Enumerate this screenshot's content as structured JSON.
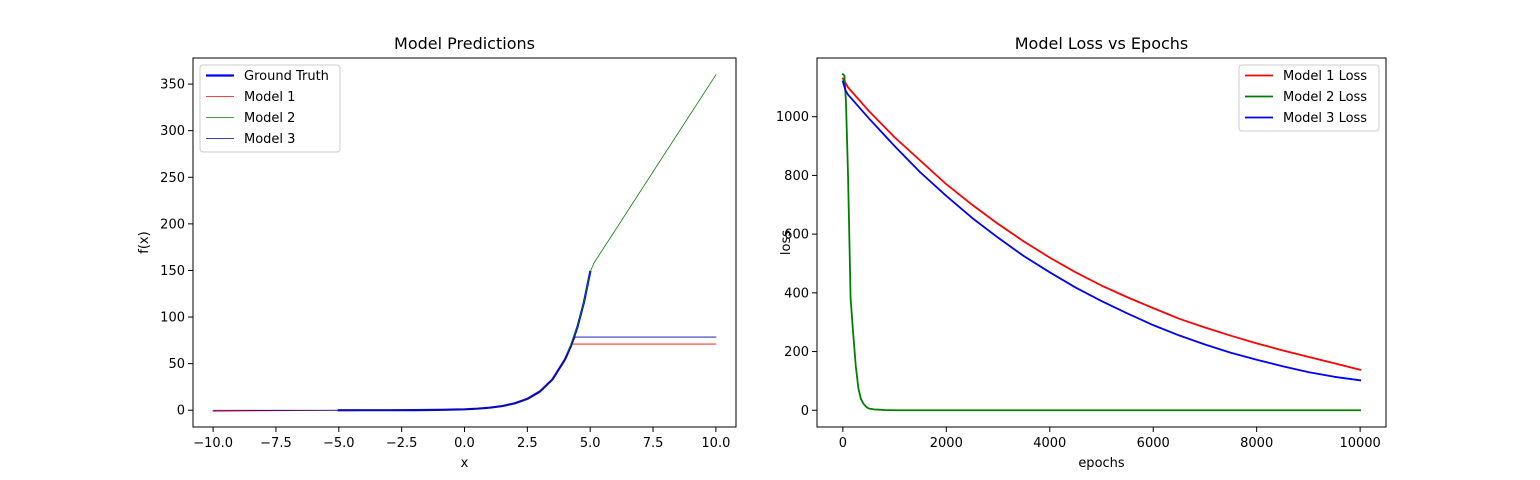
{
  "chart_data": [
    {
      "type": "line",
      "title": "Model Predictions",
      "xlabel": "x",
      "ylabel": "f(x)",
      "xlim": [
        -10.8,
        10.8
      ],
      "ylim": [
        -18,
        378
      ],
      "xticks": [
        -10.0,
        -7.5,
        -5.0,
        -2.5,
        0.0,
        2.5,
        5.0,
        7.5,
        10.0
      ],
      "xtick_labels": [
        "−10.0",
        "−7.5",
        "−5.0",
        "−2.5",
        "0.0",
        "2.5",
        "5.0",
        "7.5",
        "10.0"
      ],
      "yticks": [
        0,
        50,
        100,
        150,
        200,
        250,
        300,
        350
      ],
      "ytick_labels": [
        "0",
        "50",
        "100",
        "150",
        "200",
        "250",
        "300",
        "350"
      ],
      "grid": false,
      "legend_position": "top-left",
      "series": [
        {
          "name": "Ground Truth",
          "color": "#0000ff",
          "width": 2.2,
          "x": [
            -5.0,
            -4.0,
            -3.0,
            -2.0,
            -1.0,
            0.0,
            0.5,
            1.0,
            1.5,
            2.0,
            2.5,
            3.0,
            3.5,
            4.0,
            4.25,
            4.5,
            4.75,
            5.0
          ],
          "y": [
            0.01,
            0.02,
            0.05,
            0.14,
            0.37,
            1.0,
            1.65,
            2.72,
            4.48,
            7.39,
            12.18,
            20.09,
            33.12,
            54.6,
            70.1,
            90.0,
            115.58,
            148.41
          ]
        },
        {
          "name": "Model 1",
          "color": "#ff0000",
          "width": 0.8,
          "x": [
            -10.0,
            -5.0,
            -4.0,
            -3.0,
            -2.0,
            -1.0,
            0.0,
            0.5,
            1.0,
            1.5,
            2.0,
            2.5,
            3.0,
            3.5,
            4.0,
            4.25,
            5.0,
            10.0
          ],
          "y": [
            -1.0,
            0.01,
            0.02,
            0.05,
            0.14,
            0.37,
            1.0,
            1.65,
            2.72,
            4.48,
            7.39,
            12.18,
            20.09,
            33.12,
            54.6,
            71.0,
            71.0,
            71.0
          ]
        },
        {
          "name": "Model 2",
          "color": "#008000",
          "width": 0.8,
          "x": [
            -5.0,
            -4.0,
            -3.0,
            -2.0,
            -1.0,
            0.0,
            0.5,
            1.0,
            1.5,
            2.0,
            2.5,
            3.0,
            3.5,
            4.0,
            4.5,
            4.75,
            5.0,
            5.15,
            10.0
          ],
          "y": [
            0.01,
            0.02,
            0.05,
            0.14,
            0.37,
            1.0,
            1.65,
            2.72,
            4.48,
            7.39,
            12.18,
            20.09,
            33.12,
            54.6,
            90.0,
            115.58,
            148.41,
            158.0,
            360.0
          ]
        },
        {
          "name": "Model 3",
          "color": "#0000aa",
          "width": 0.8,
          "x": [
            -10.0,
            -5.0,
            -4.0,
            -3.0,
            -2.0,
            -1.0,
            0.0,
            0.5,
            1.0,
            1.5,
            2.0,
            2.5,
            3.0,
            3.5,
            4.0,
            4.4,
            5.0,
            10.0
          ],
          "y": [
            0.0,
            0.01,
            0.02,
            0.05,
            0.14,
            0.37,
            1.0,
            1.65,
            2.72,
            4.48,
            7.39,
            12.18,
            20.09,
            33.12,
            54.6,
            78.5,
            78.5,
            78.5
          ]
        }
      ]
    },
    {
      "type": "line",
      "title": "Model Loss vs Epochs",
      "xlabel": "epochs",
      "ylabel": "loss",
      "xlim": [
        -500,
        10500
      ],
      "ylim": [
        -57,
        1200
      ],
      "xticks": [
        0,
        2000,
        4000,
        6000,
        8000,
        10000
      ],
      "xtick_labels": [
        "0",
        "2000",
        "4000",
        "6000",
        "8000",
        "10000"
      ],
      "yticks": [
        0,
        200,
        400,
        600,
        800,
        1000
      ],
      "ytick_labels": [
        "0",
        "200",
        "400",
        "600",
        "800",
        "1000"
      ],
      "grid": false,
      "legend_position": "top-right",
      "series": [
        {
          "name": "Model 1 Loss",
          "color": "#ff0000",
          "width": 1.8,
          "x": [
            0,
            50,
            100,
            200,
            500,
            1000,
            1500,
            2000,
            2500,
            3000,
            3500,
            4000,
            4500,
            5000,
            5500,
            6000,
            6500,
            7000,
            7500,
            8000,
            8500,
            9000,
            9500,
            10000
          ],
          "y": [
            1130,
            1115,
            1100,
            1080,
            1020,
            930,
            850,
            770,
            700,
            635,
            575,
            520,
            470,
            425,
            385,
            348,
            312,
            282,
            254,
            228,
            204,
            182,
            160,
            138
          ]
        },
        {
          "name": "Model 2 Loss",
          "color": "#008000",
          "width": 1.8,
          "x": [
            0,
            30,
            60,
            100,
            150,
            200,
            250,
            300,
            350,
            400,
            450,
            500,
            600,
            700,
            800,
            1000,
            1500,
            2000,
            4000,
            6000,
            8000,
            10000
          ],
          "y": [
            1145,
            1140,
            1050,
            800,
            380,
            260,
            150,
            75,
            38,
            22,
            12,
            6,
            3,
            2,
            1,
            0,
            0,
            0,
            0,
            0,
            0,
            0
          ]
        },
        {
          "name": "Model 3 Loss",
          "color": "#0000ff",
          "width": 1.8,
          "x": [
            0,
            50,
            100,
            200,
            500,
            1000,
            1500,
            2000,
            2500,
            3000,
            3500,
            4000,
            4500,
            5000,
            5500,
            6000,
            6500,
            7000,
            7500,
            8000,
            8500,
            9000,
            9500,
            10000
          ],
          "y": [
            1120,
            1090,
            1075,
            1055,
            995,
            900,
            810,
            730,
            655,
            588,
            525,
            470,
            418,
            372,
            330,
            290,
            255,
            224,
            196,
            172,
            150,
            130,
            114,
            102
          ]
        }
      ]
    }
  ]
}
